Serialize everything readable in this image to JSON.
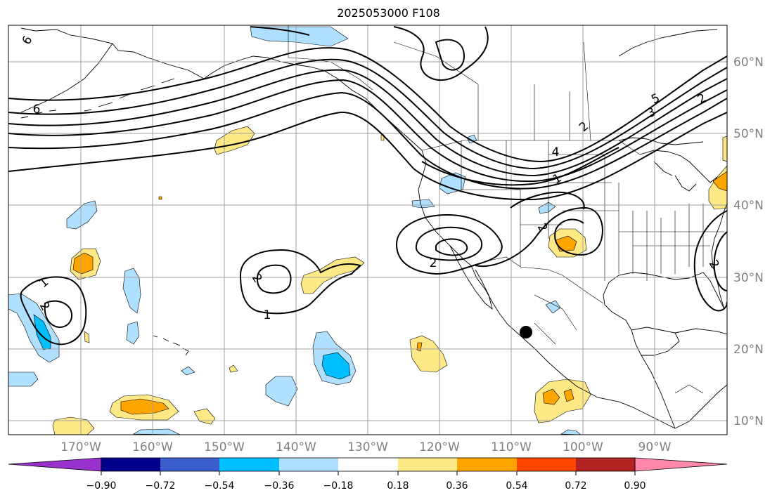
{
  "title": "2025053000 F108",
  "colors": {
    "ocean": "#ffffff",
    "land": "#ffffff",
    "coast": "#000000",
    "grid": "#a0a0a0",
    "tick_label": "#808080",
    "contour": "#000000"
  },
  "map": {
    "lon_range": [
      -180,
      -80
    ],
    "lat_range": [
      8,
      66
    ],
    "lon_labels": [
      "170°W",
      "160°W",
      "150°W",
      "140°W",
      "130°W",
      "120°W",
      "110°W",
      "100°W",
      "90°W"
    ],
    "lat_labels": [
      "10°N",
      "20°N",
      "30°N",
      "40°N",
      "50°N",
      "60°N"
    ]
  },
  "contour_labels": [
    "6",
    "6",
    "5",
    "4",
    "3",
    "2",
    "1",
    "2",
    "2",
    "1",
    "2",
    "1",
    "2",
    "2",
    "2"
  ],
  "colorbar": {
    "colors": [
      "#9932cc",
      "#00008b",
      "#3a5fcd",
      "#00bfff",
      "#afe0ff",
      "#ffffff",
      "#ffe987",
      "#ffa500",
      "#ff4500",
      "#b22222",
      "#ff88aa"
    ],
    "tick_labels": [
      "−0.90",
      "−0.72",
      "−0.54",
      "−0.36",
      "−0.18",
      "0.18",
      "0.36",
      "0.54",
      "0.72",
      "0.90"
    ],
    "extend": "both"
  },
  "marker": {
    "label": "storm-center-marker",
    "lon": -108,
    "lat": 22.5
  }
}
